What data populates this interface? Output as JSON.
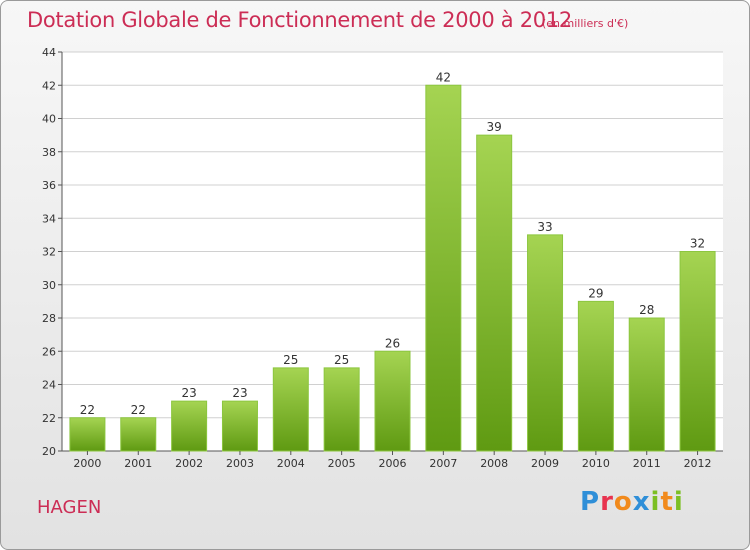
{
  "header": {
    "title": "Dotation Globale de Fonctionnement de 2000 à 2012",
    "subtitle": "(en milliers d'€)"
  },
  "commune": "HAGEN",
  "logo": {
    "text": "Proxiti"
  },
  "colors": {
    "title": "#cc2d55",
    "bar_top": "#a5d452",
    "bar_bottom": "#5f9a12",
    "plot_bg": "#ffffff",
    "grid": "#d0d0d0"
  },
  "chart_data": {
    "type": "bar",
    "title": "Dotation Globale de Fonctionnement de 2000 à 2012",
    "subtitle": "(en milliers d'€)",
    "categories": [
      "2000",
      "2001",
      "2002",
      "2003",
      "2004",
      "2005",
      "2006",
      "2007",
      "2008",
      "2009",
      "2010",
      "2011",
      "2012"
    ],
    "values": [
      22,
      22,
      23,
      23,
      25,
      25,
      26,
      42,
      39,
      33,
      29,
      28,
      32
    ],
    "ylim": [
      20,
      44
    ],
    "yticks": [
      20,
      22,
      24,
      26,
      28,
      30,
      32,
      34,
      36,
      38,
      40,
      42,
      44
    ],
    "xlabel": "",
    "ylabel": "",
    "grid": true,
    "legend": "none"
  }
}
